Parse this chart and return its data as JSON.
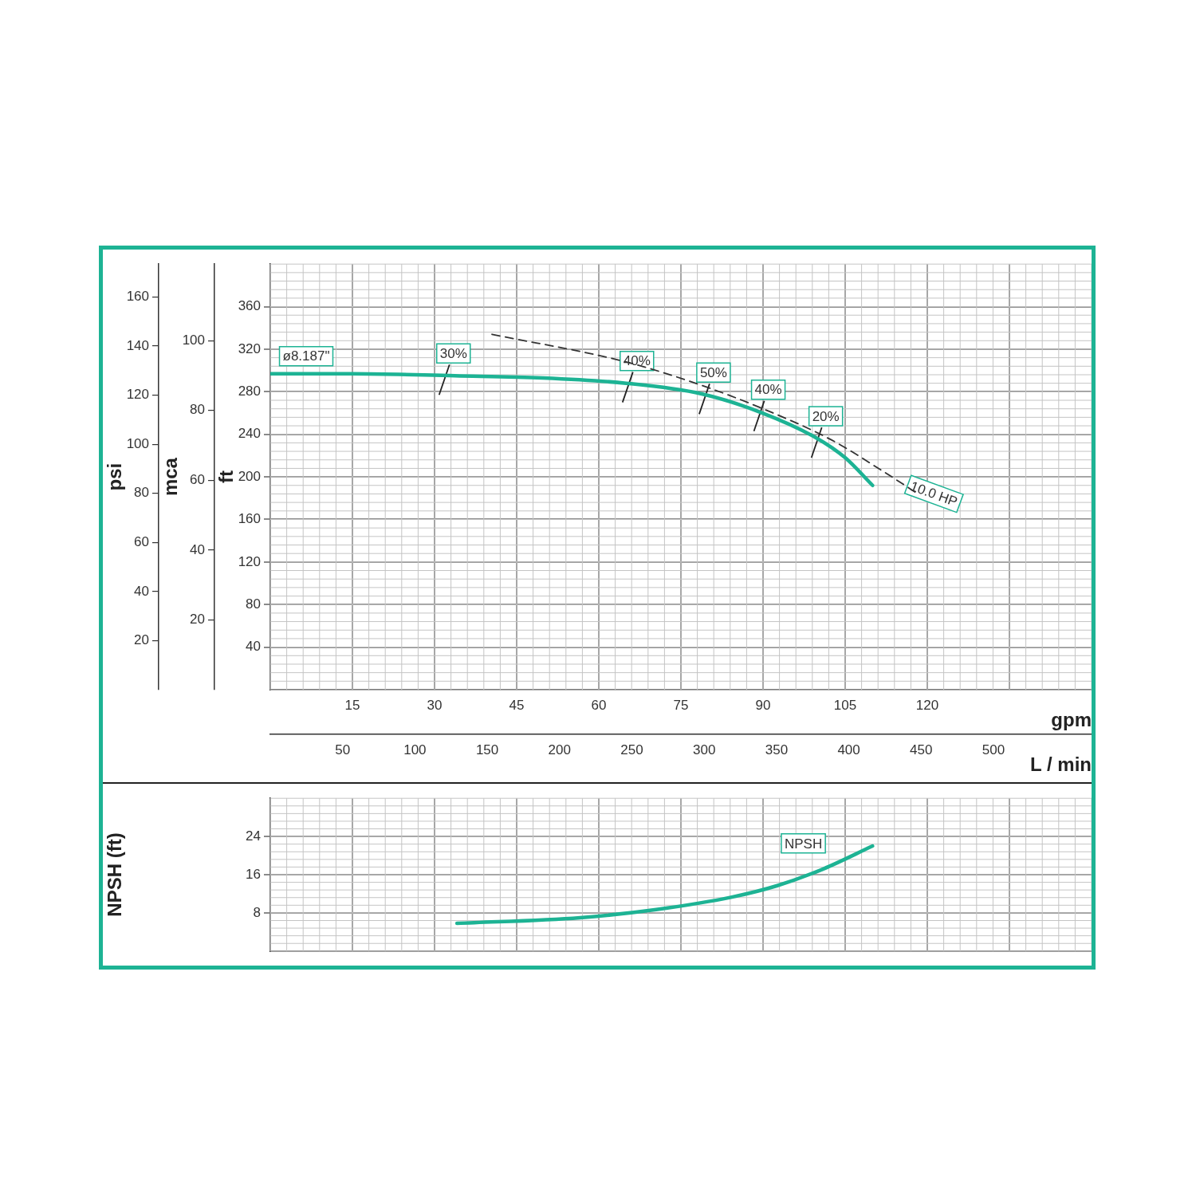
{
  "chart_data": [
    {
      "type": "line",
      "xlabel": "gpm",
      "x2label": "L / min",
      "ylabel": "ft",
      "y2label": "psi",
      "y3label": "mca",
      "xlim": [
        0,
        150
      ],
      "xticks": [
        15,
        30,
        45,
        60,
        75,
        90,
        105,
        120,
        {
          "value": 135,
          "label": null
        }
      ],
      "x2lim": [
        0,
        567.8
      ],
      "x2ticks": [
        50,
        100,
        150,
        200,
        250,
        300,
        350,
        400,
        450,
        500
      ],
      "ylim": [
        0,
        400
      ],
      "yticks": [
        40,
        80,
        120,
        160,
        200,
        240,
        280,
        320,
        360
      ],
      "y2lim": [
        0,
        173.4
      ],
      "y2ticks": [
        20,
        40,
        60,
        80,
        100,
        120,
        140,
        160
      ],
      "y3lim": [
        0,
        121.9
      ],
      "y3ticks": [
        20,
        40,
        60,
        80,
        100
      ],
      "grid": true,
      "marker": "none",
      "series": [
        {
          "name": "ø8.187\"",
          "color": "#1db394",
          "line_style": "solid",
          "x": [
            0,
            15,
            33.7,
            49.7,
            65,
            78.8,
            89.9,
            99.6,
            105,
            110
          ],
          "values": [
            297,
            297,
            295,
            293,
            288,
            278,
            260,
            237,
            218,
            192
          ]
        },
        {
          "name": "10.0 HP",
          "color": "#333333",
          "line_style": "dashed",
          "x": [
            40.5,
            65,
            78.8,
            90,
            102.4,
            112,
            118.3
          ],
          "values": [
            334,
            308,
            286,
            264,
            235,
            205,
            184
          ]
        }
      ],
      "annotations": [
        {
          "text": "30%",
          "x": 32,
          "y": 295
        },
        {
          "text": "40%",
          "x": 65.5,
          "y": 288
        },
        {
          "text": "50%",
          "x": 79.5,
          "y": 277
        },
        {
          "text": "40%",
          "x": 89.5,
          "y": 261
        },
        {
          "text": "20%",
          "x": 100,
          "y": 236
        }
      ]
    },
    {
      "type": "line",
      "ylabel": "NPSH (ft)",
      "xlim": [
        0,
        150
      ],
      "xticks": [
        15,
        30,
        45,
        60,
        75,
        90,
        105,
        120,
        135
      ],
      "ylim": [
        0,
        32
      ],
      "yticks": [
        8,
        16,
        24
      ],
      "tick_labels": "y",
      "grid": true,
      "marker": "none",
      "series": [
        {
          "name": "NPSH",
          "color": "#1db394",
          "line_style": "solid",
          "x": [
            34.1,
            56.6,
            70.5,
            84.3,
            92.6,
            101,
            110
          ],
          "values": [
            5.8,
            7.0,
            8.7,
            11.3,
            13.7,
            17.2,
            22
          ]
        }
      ]
    }
  ]
}
